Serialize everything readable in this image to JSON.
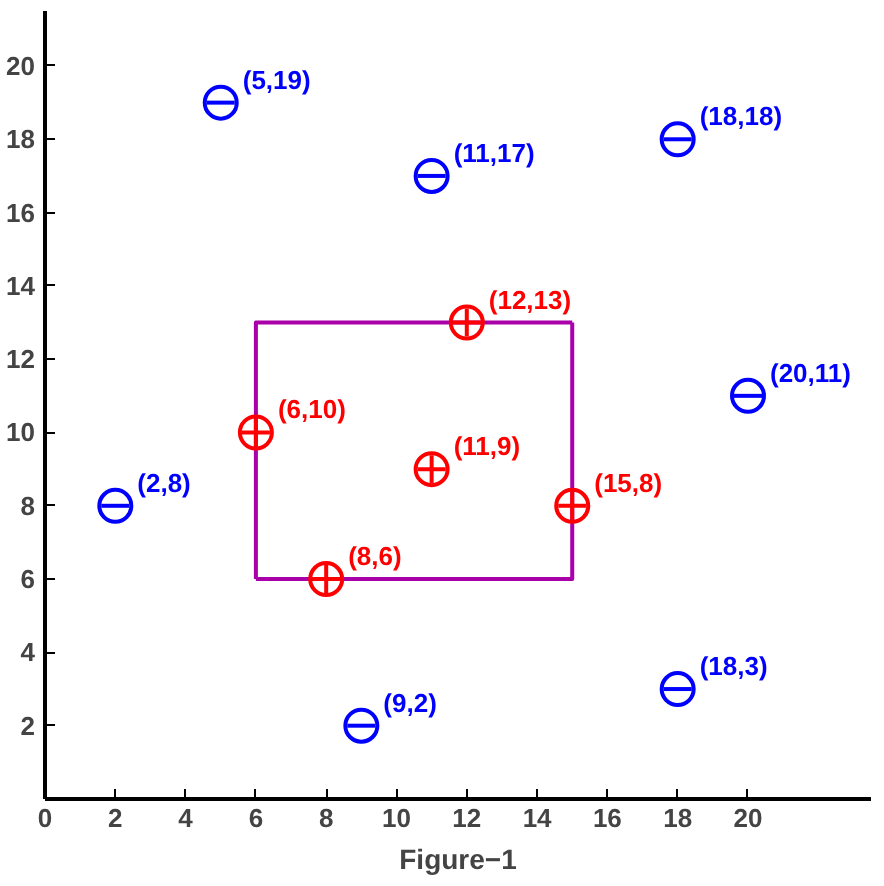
{
  "chart_data": {
    "type": "scatter",
    "xlabel": "Figure−1",
    "xlim": [
      0,
      23.5
    ],
    "ylim": [
      0,
      21.5
    ],
    "xticks": [
      {
        "value": 0,
        "label": "0"
      },
      2,
      4,
      6,
      8,
      10,
      12,
      14,
      16,
      18,
      20
    ],
    "yticks": [
      {
        "value": 0,
        "label": null
      },
      2,
      4,
      6,
      8,
      10,
      12,
      14,
      16,
      18,
      20
    ],
    "grid": false,
    "series": [
      {
        "type": "line",
        "line_style": "solid",
        "color": "#aa00aa",
        "x": [
          6,
          6,
          15
        ],
        "values": [
          6,
          13,
          13
        ]
      },
      {
        "type": "line",
        "line_style": "solid",
        "color": "#aa00aa",
        "x": [
          6,
          15,
          15
        ],
        "values": [
          6,
          6,
          13
        ]
      },
      {
        "marker": "circle",
        "color": "#0000ff",
        "x": [
          5,
          11,
          18,
          20,
          2,
          9,
          18
        ],
        "values": [
          19,
          17,
          18,
          11,
          8,
          2,
          3
        ]
      },
      {
        "marker": "cross",
        "color": "#ff0000",
        "x": [
          6,
          12,
          11,
          15,
          8
        ],
        "values": [
          10,
          13,
          9,
          8,
          6
        ]
      }
    ],
    "annotations": [
      {
        "text": "(5,19)",
        "x": 5,
        "y": 19
      },
      {
        "text": "(11,17)",
        "x": 11,
        "y": 17
      },
      {
        "text": "(18,18)",
        "x": 18,
        "y": 18
      },
      {
        "text": "(20,11)",
        "x": 20,
        "y": 11
      },
      {
        "text": "(2,8)",
        "x": 2,
        "y": 8
      },
      {
        "text": "(9,2)",
        "x": 9,
        "y": 2
      },
      {
        "text": "(18,3)",
        "x": 18,
        "y": 3
      },
      {
        "text": "(6,10)",
        "x": 6,
        "y": 10
      },
      {
        "text": "(12,13)",
        "x": 12,
        "y": 13
      },
      {
        "text": "(11,9)",
        "x": 11,
        "y": 9
      },
      {
        "text": "(15,8)",
        "x": 15,
        "y": 8
      },
      {
        "text": "(8,6)",
        "x": 8,
        "y": 6
      }
    ]
  }
}
